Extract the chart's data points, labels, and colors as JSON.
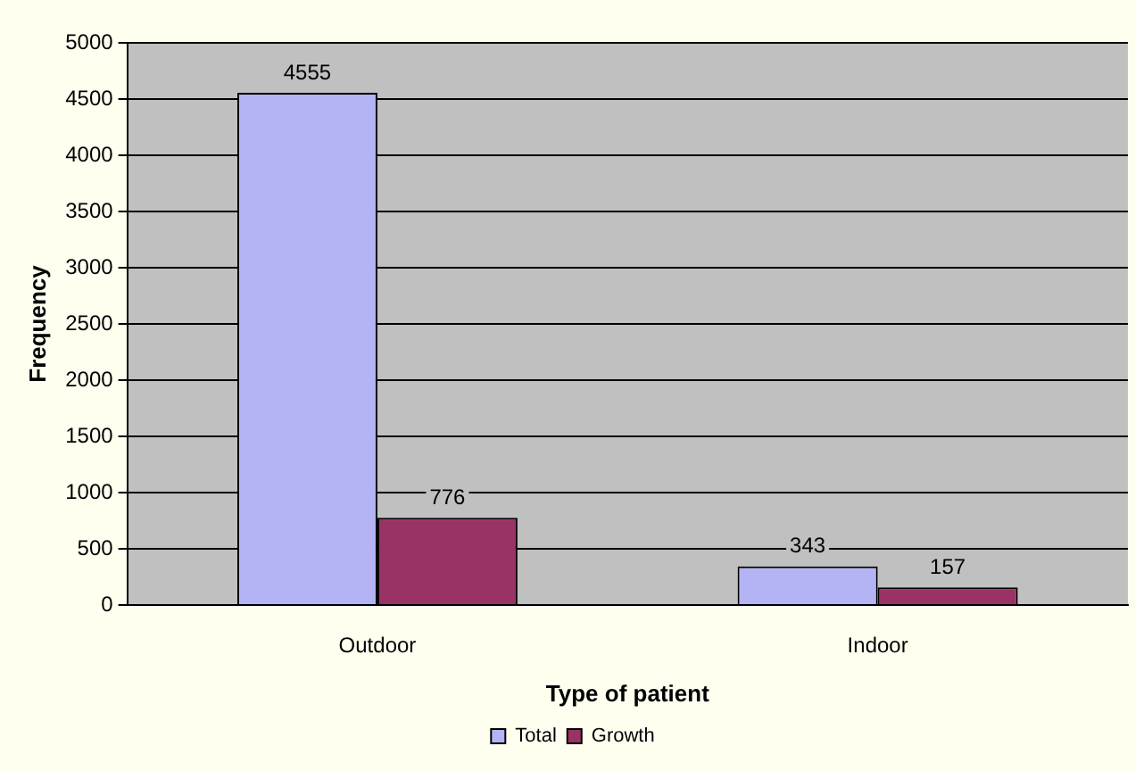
{
  "chart_data": {
    "type": "bar",
    "xlabel": "Type of patient",
    "ylabel": "Frequency",
    "categories": [
      "Outdoor",
      "Indoor"
    ],
    "series": [
      {
        "name": "Total",
        "color": "#b4b4f4",
        "values": [
          4555,
          343
        ]
      },
      {
        "name": "Growth",
        "color": "#993366",
        "values": [
          776,
          157
        ]
      }
    ],
    "ylim": [
      0,
      5000
    ],
    "yticks": [
      0,
      500,
      1000,
      1500,
      2000,
      2500,
      3000,
      3500,
      4000,
      4500,
      5000
    ],
    "grid": "y",
    "legend": "bottom",
    "data_labels": true
  }
}
